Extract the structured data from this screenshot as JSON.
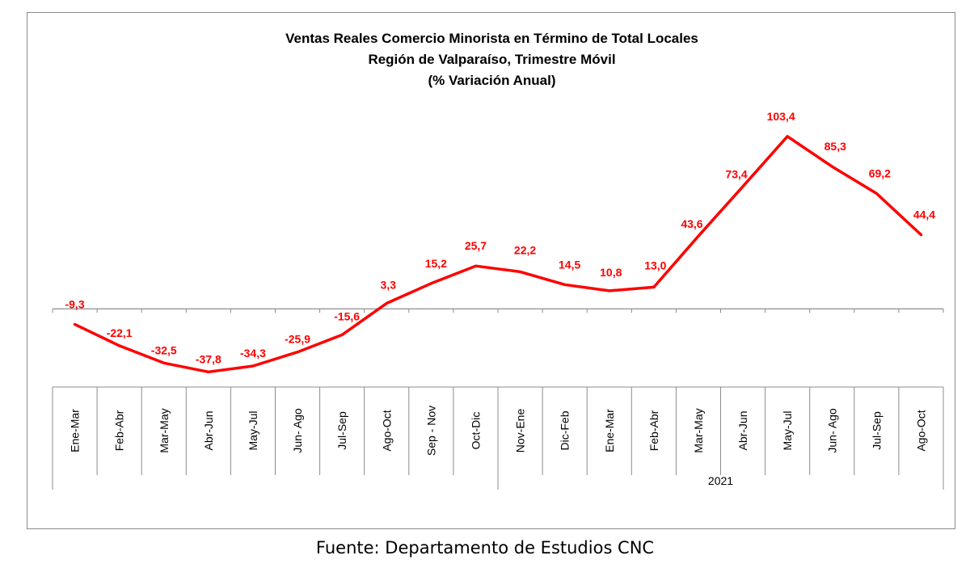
{
  "chart_data": {
    "type": "line",
    "title_lines": [
      "Ventas Reales Comercio Minorista  en Término de Total Locales",
      "Región de Valparaíso, Trimestre Móvil",
      "(% Variación Anual)"
    ],
    "categories": [
      "Ene-Mar",
      "Feb-Abr",
      "Mar-May",
      "Abr-Jun",
      "May-Jul",
      "Jun- Ago",
      "Jul-Sep",
      "Ago-Oct",
      "Sep - Nov",
      "Oct-Dic",
      "Nov-Ene",
      "Dic-Feb",
      "Ene-Mar",
      "Feb-Abr",
      "Mar-May",
      "Abr-Jun",
      "May-Jul",
      "Jun- Ago",
      "Jul-Sep",
      "Ago-Oct"
    ],
    "group_labels": [
      {
        "label": "",
        "start": 0,
        "end": 9
      },
      {
        "label": "2021",
        "start": 10,
        "end": 19
      }
    ],
    "series": [
      {
        "values": [
          -9.3,
          -22.1,
          -32.5,
          -37.8,
          -34.3,
          -25.9,
          -15.6,
          3.3,
          15.2,
          25.7,
          22.2,
          14.5,
          10.8,
          13.0,
          43.6,
          73.4,
          103.4,
          85.3,
          69.2,
          44.4
        ],
        "value_labels": [
          "-9,3",
          "-22,1",
          "-32,5",
          "-37,8",
          "-34,3",
          "-25,9",
          "-15,6",
          "3,3",
          "15,2",
          "25,7",
          "22,2",
          "14,5",
          "10,8",
          "13,0",
          "43,6",
          "73,4",
          "103,4",
          "85,3",
          "69,2",
          "44,4"
        ],
        "color": "#ff0000"
      }
    ],
    "ylim": [
      -43,
      112
    ],
    "grid": false,
    "legend": "none",
    "xlabel": "",
    "ylabel": ""
  },
  "source_note": "Fuente: Departamento de Estudios CNC"
}
